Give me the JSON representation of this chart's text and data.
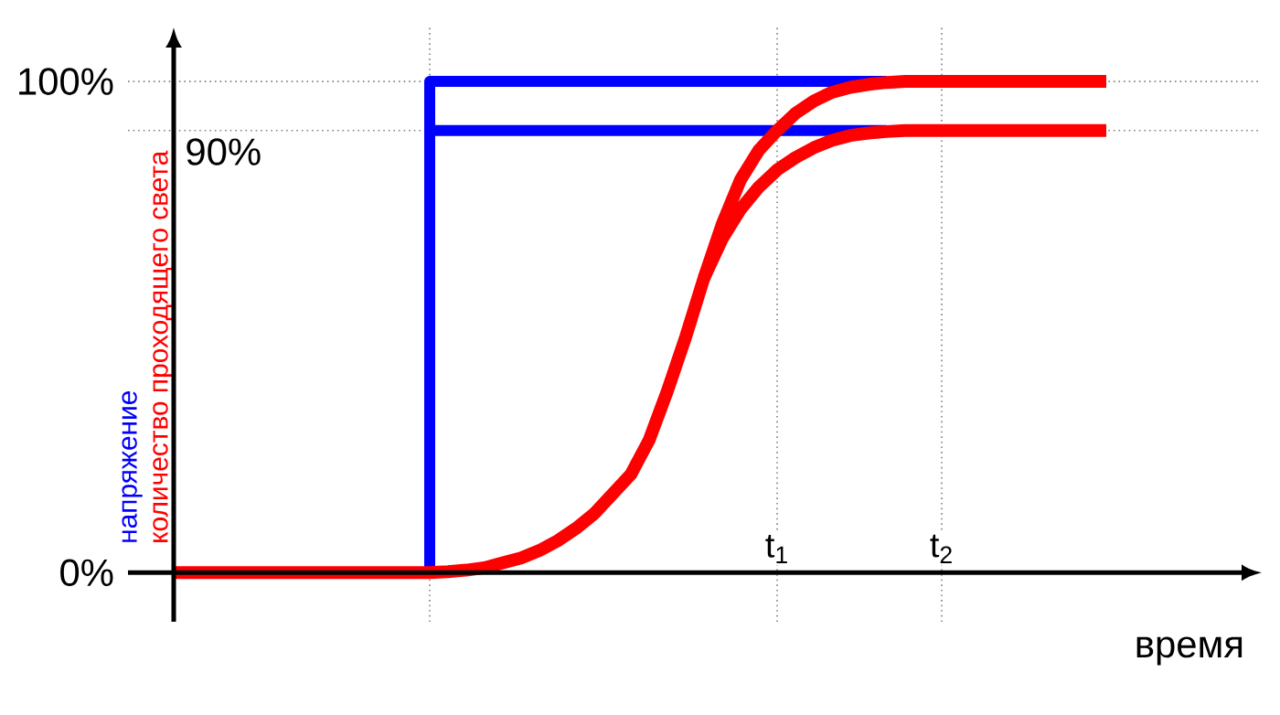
{
  "chart_data": {
    "type": "line",
    "xlabel": "время",
    "marker": "none",
    "categories": [
      null,
      null,
      null,
      null,
      null,
      null,
      null,
      null,
      null,
      null,
      null,
      null,
      null,
      null,
      null,
      null,
      null,
      null,
      null,
      null,
      null,
      null,
      null,
      null,
      null,
      null,
      null,
      null,
      null,
      null,
      null,
      null,
      null,
      null,
      null,
      "t$_{1}$",
      null,
      null,
      null,
      null,
      null,
      null,
      null,
      null,
      "t$_{2}$",
      null,
      null,
      null,
      null,
      null,
      null,
      null,
      null,
      null,
      null,
      null,
      null,
      null,
      null,
      null,
      null,
      null
    ],
    "ylim": [
      -10,
      111
    ],
    "yticks": [
      {
        "value": 0,
        "label": "0%"
      },
      {
        "value": 100,
        "label": "100%"
      }
    ],
    "grid": true,
    "ref_lines": [
      {
        "axis": "y",
        "value": 90,
        "label": "90%",
        "color": "#808080",
        "line_style": "dotted"
      }
    ],
    "series": [
      {
        "name": "напряжение",
        "type": "step",
        "color": "#0000ff",
        "values": [
          null,
          null,
          null,
          null,
          null,
          null,
          null,
          null,
          null,
          null,
          null,
          null,
          null,
          null,
          null,
          null,
          0,
          100,
          100,
          100,
          100,
          100,
          100,
          100,
          100,
          100,
          100,
          100,
          100,
          100,
          100,
          100,
          100,
          100,
          100,
          100,
          100,
          100,
          100,
          100,
          100,
          100,
          null,
          null,
          null,
          null,
          null,
          null,
          null,
          null,
          null,
          null,
          null,
          null,
          null,
          null,
          null,
          null,
          null,
          null,
          null,
          null
        ]
      },
      {
        "color": "#0000ff",
        "values": [
          null,
          null,
          null,
          null,
          null,
          null,
          null,
          null,
          null,
          null,
          null,
          null,
          null,
          null,
          null,
          null,
          90,
          90,
          90,
          90,
          90,
          90,
          90,
          90,
          90,
          90,
          90,
          90,
          90,
          90,
          90,
          90,
          90,
          90,
          90,
          90,
          90,
          90,
          90,
          90,
          90,
          90,
          null,
          null,
          null,
          null,
          null,
          null,
          null,
          null,
          null,
          null,
          null,
          null,
          null,
          null,
          null,
          null,
          null,
          null,
          null,
          null
        ]
      },
      {
        "name": "количество проходящего света",
        "color": "#ff0000",
        "values": [
          null,
          null,
          0,
          0,
          0,
          0,
          0,
          0,
          0,
          0,
          0,
          0,
          0,
          0,
          0,
          0,
          0,
          0.2,
          0.5,
          1,
          2,
          3,
          4.5,
          6.5,
          9,
          12,
          16,
          20,
          27,
          37,
          48,
          60,
          71,
          80,
          86,
          90,
          93.5,
          96,
          97.8,
          98.8,
          99.4,
          99.8,
          100,
          100,
          100,
          100,
          100,
          100,
          100,
          100,
          100,
          100,
          100,
          100,
          null,
          null,
          null,
          null,
          null,
          null,
          null,
          null
        ]
      },
      {
        "color": "#ff0000",
        "values": [
          null,
          null,
          null,
          null,
          null,
          null,
          null,
          null,
          null,
          null,
          null,
          null,
          null,
          null,
          null,
          null,
          null,
          null,
          null,
          null,
          null,
          null,
          null,
          null,
          null,
          null,
          null,
          null,
          null,
          null,
          null,
          60,
          68,
          74,
          78.5,
          82,
          84.5,
          86.5,
          88,
          89,
          89.5,
          89.8,
          90,
          90,
          90,
          90,
          90,
          90,
          90,
          90,
          90,
          90,
          90,
          90,
          null,
          null,
          null,
          null,
          null,
          null,
          null,
          null
        ]
      }
    ]
  }
}
